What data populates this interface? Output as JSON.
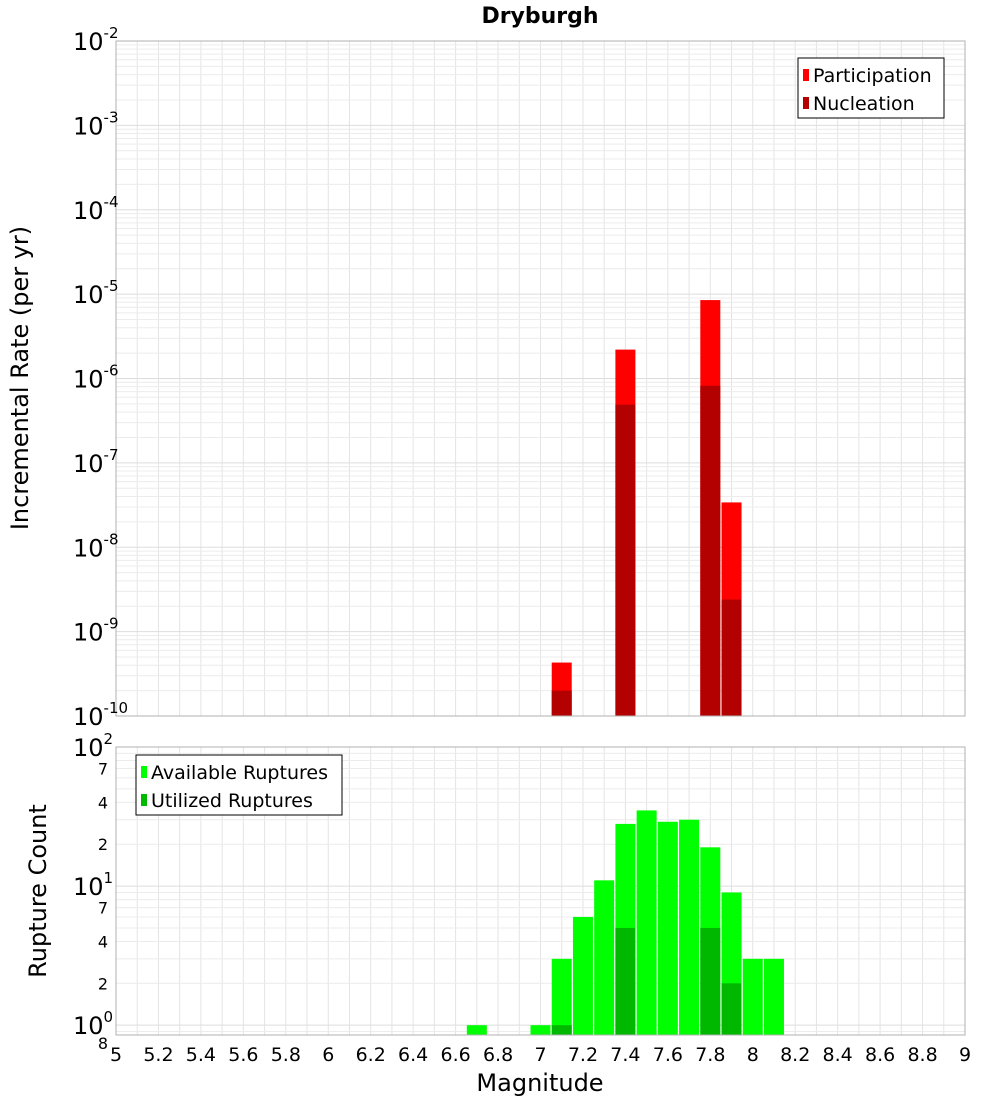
{
  "chart_data": [
    {
      "type": "bar",
      "title": "Dryburgh",
      "ylabel": "Incremental Rate (per yr)",
      "yscale": "log",
      "ylim": [
        1e-10,
        0.01
      ],
      "xlim": [
        5,
        9
      ],
      "grid": true,
      "legend_position": "top-right",
      "y_ticks": [
        {
          "base": "10",
          "exp": "-10"
        },
        {
          "base": "10",
          "exp": "-9"
        },
        {
          "base": "10",
          "exp": "-8"
        },
        {
          "base": "10",
          "exp": "-7"
        },
        {
          "base": "10",
          "exp": "-6"
        },
        {
          "base": "10",
          "exp": "-5"
        },
        {
          "base": "10",
          "exp": "-4"
        },
        {
          "base": "10",
          "exp": "-3"
        },
        {
          "base": "10",
          "exp": "-2"
        }
      ],
      "series": [
        {
          "name": "Participation",
          "color": "#ff0000",
          "x": [
            7.1,
            7.4,
            7.8,
            7.9
          ],
          "values": [
            4.3e-10,
            2.2e-06,
            8.5e-06,
            3.4e-08
          ]
        },
        {
          "name": "Nucleation",
          "color": "#b30000",
          "x": [
            7.1,
            7.4,
            7.8,
            7.9
          ],
          "values": [
            2e-10,
            4.9e-07,
            8.2e-07,
            2.4e-09
          ]
        }
      ]
    },
    {
      "type": "bar",
      "xlabel": "Magnitude",
      "ylabel": "Rupture Count",
      "yscale": "log",
      "ylim": [
        0.85,
        100
      ],
      "xlim": [
        5,
        9
      ],
      "grid": true,
      "legend_position": "top-left",
      "x_ticks": [
        "5",
        "5.2",
        "5.4",
        "5.6",
        "5.8",
        "6",
        "6.2",
        "6.4",
        "6.6",
        "6.8",
        "7",
        "7.2",
        "7.4",
        "7.6",
        "7.8",
        "8",
        "8.2",
        "8.4",
        "8.6",
        "8.8",
        "9"
      ],
      "y_major_ticks": [
        {
          "value": 1,
          "base": "10",
          "exp": "0"
        },
        {
          "value": 10,
          "base": "10",
          "exp": "1"
        },
        {
          "value": 100,
          "base": "10",
          "exp": "2"
        }
      ],
      "y_minor_ticks": [
        {
          "value": 0.8,
          "label": "8"
        },
        {
          "value": 2,
          "label": "2"
        },
        {
          "value": 4,
          "label": "4"
        },
        {
          "value": 7,
          "label": "7"
        },
        {
          "value": 20,
          "label": "2"
        },
        {
          "value": 40,
          "label": "4"
        },
        {
          "value": 70,
          "label": "7"
        }
      ],
      "series": [
        {
          "name": "Available Ruptures",
          "color": "#00ff00",
          "x": [
            6.7,
            7.0,
            7.1,
            7.2,
            7.3,
            7.4,
            7.5,
            7.6,
            7.7,
            7.8,
            7.9,
            8.0,
            8.1
          ],
          "values": [
            1,
            1,
            3,
            6,
            11,
            28,
            35,
            29,
            30,
            19,
            9,
            3,
            3
          ]
        },
        {
          "name": "Utilized Ruptures",
          "color": "#00b800",
          "x": [
            7.1,
            7.4,
            7.8,
            7.9
          ],
          "values": [
            1,
            5,
            5,
            2
          ]
        }
      ]
    }
  ]
}
